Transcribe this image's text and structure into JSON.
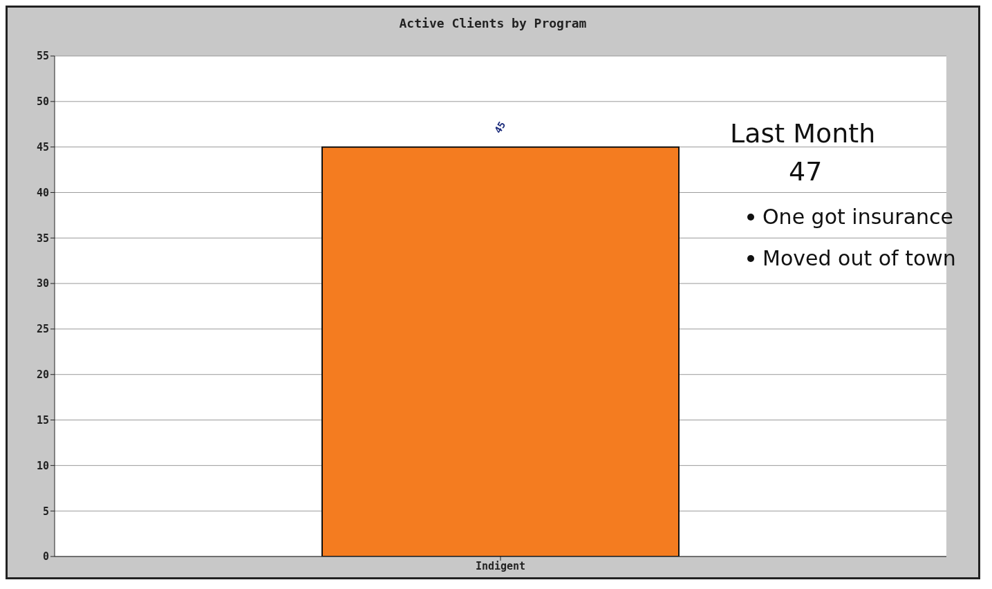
{
  "chart_data": {
    "type": "bar",
    "title": "Active Clients by Program",
    "categories": [
      "Indigent"
    ],
    "values": [
      45
    ],
    "color": "#f47c20",
    "ylim": [
      0,
      55
    ],
    "yticks": [
      0,
      5,
      10,
      15,
      20,
      25,
      30,
      35,
      40,
      45,
      50,
      55
    ],
    "grid": "y",
    "data_labels": true,
    "annotations": [
      "Last Month",
      "47",
      "One got insurance",
      "Moved out of town"
    ]
  }
}
